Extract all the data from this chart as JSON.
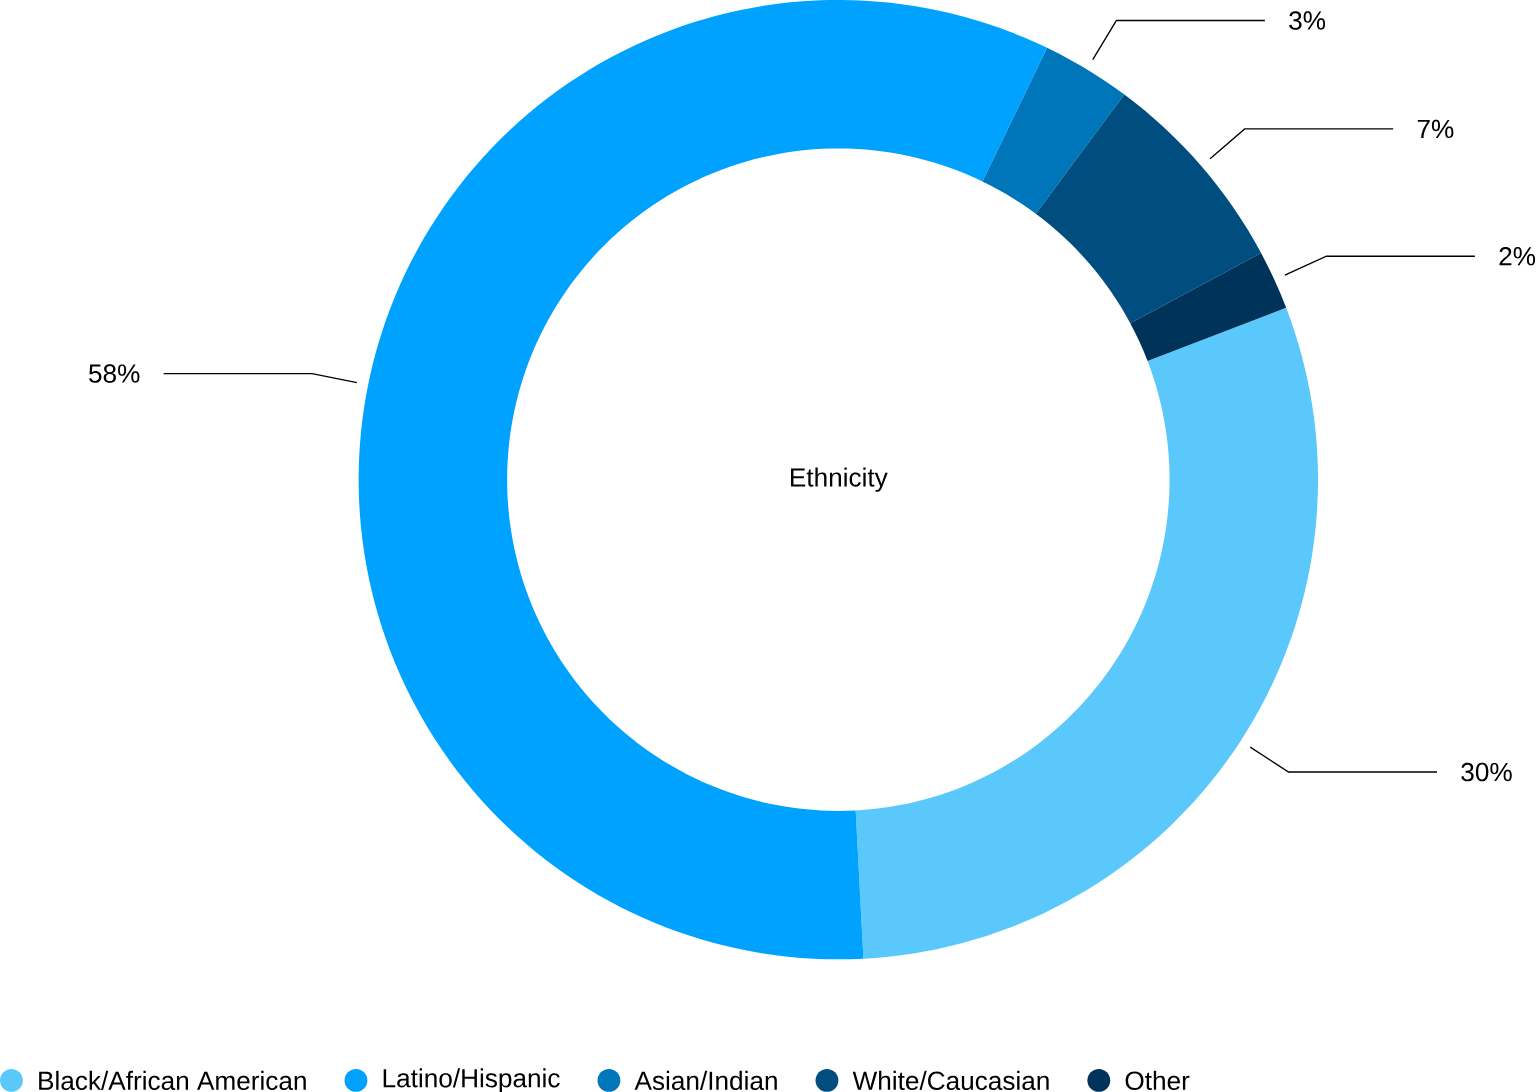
{
  "chart_data": {
    "type": "donut",
    "title": "Ethnicity",
    "categories": [
      "Black/African American",
      "Latino/Hispanic",
      "Asian/Indian",
      "White/Caucasian",
      "Other"
    ],
    "values": [
      30,
      58,
      3,
      7,
      2
    ],
    "value_labels": [
      "30%",
      "58%",
      "3%",
      "7%",
      "2%"
    ],
    "colors": [
      "#5ac8fa",
      "#00a2ff",
      "#0076ba",
      "#004d80",
      "#003359"
    ],
    "legend": "bottom"
  }
}
